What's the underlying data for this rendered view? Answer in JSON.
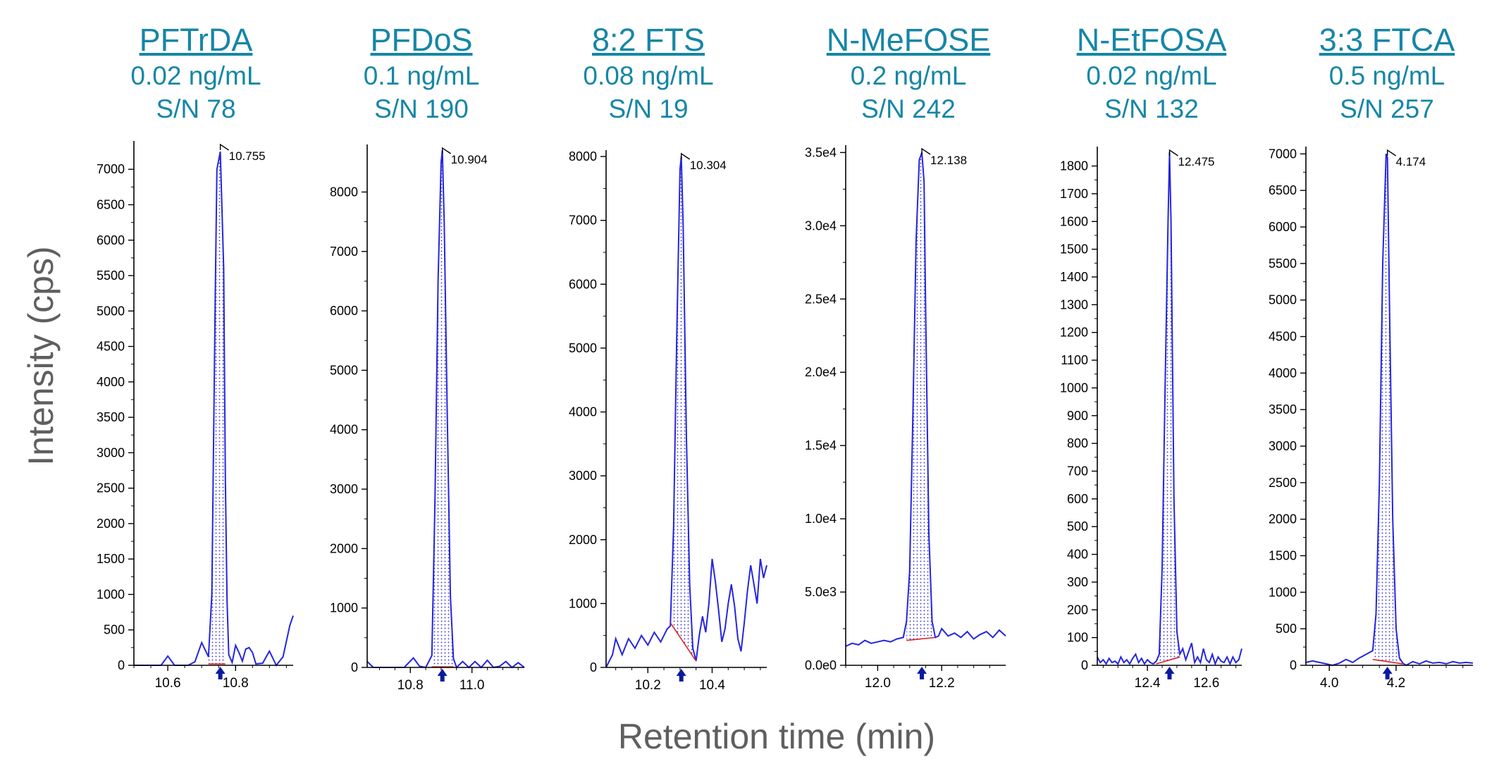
{
  "figure": {
    "ylabel": "Intensity (cps)",
    "xlabel": "Retention time (min)"
  },
  "chart_data": [
    {
      "type": "line",
      "title": "PFTrDA",
      "concentration": "0.02 ng/mL",
      "sn": "S/N 78",
      "peak_label": "10.755",
      "peak_rt": 10.755,
      "xlim": [
        10.5,
        10.97
      ],
      "ylim": [
        0,
        7400
      ],
      "xticks": [
        10.6,
        10.8
      ],
      "xtick_labels": [
        "10.6",
        "10.8"
      ],
      "yticks": [
        0,
        500,
        1000,
        1500,
        2000,
        2500,
        3000,
        3500,
        4000,
        4500,
        5000,
        5500,
        6000,
        6500,
        7000
      ],
      "ytick_labels": [
        "0",
        "500",
        "1000",
        "1500",
        "2000",
        "2500",
        "3000",
        "3500",
        "4000",
        "4500",
        "5000",
        "5500",
        "6000",
        "6500",
        "7000"
      ],
      "baseline": {
        "x": [
          10.72,
          10.77
        ],
        "y": [
          20,
          20
        ]
      },
      "x": [
        10.5,
        10.55,
        10.58,
        10.6,
        10.62,
        10.64,
        10.66,
        10.68,
        10.7,
        10.72,
        10.73,
        10.74,
        10.745,
        10.755,
        10.765,
        10.77,
        10.775,
        10.78,
        10.79,
        10.8,
        10.81,
        10.82,
        10.83,
        10.84,
        10.85,
        10.86,
        10.88,
        10.9,
        10.92,
        10.94,
        10.96,
        10.97
      ],
      "y": [
        0,
        0,
        0,
        130,
        0,
        0,
        0,
        50,
        320,
        120,
        1000,
        5200,
        7000,
        7250,
        5600,
        2600,
        900,
        150,
        40,
        280,
        180,
        60,
        230,
        250,
        180,
        20,
        30,
        200,
        0,
        120,
        560,
        700
      ],
      "integrated": {
        "x_start": 10.72,
        "x_end": 10.77
      }
    },
    {
      "type": "line",
      "title": "PFDoS",
      "concentration": "0.1 ng/mL",
      "sn": "S/N 190",
      "peak_label": "10.904",
      "peak_rt": 10.904,
      "xlim": [
        10.66,
        11.17
      ],
      "ylim": [
        0,
        8800
      ],
      "xticks": [
        10.8,
        11.0
      ],
      "xtick_labels": [
        "10.8",
        "11.0"
      ],
      "yticks": [
        0,
        1000,
        2000,
        3000,
        4000,
        5000,
        6000,
        7000,
        8000
      ],
      "ytick_labels": [
        "0",
        "1000",
        "2000",
        "3000",
        "4000",
        "5000",
        "6000",
        "7000",
        "8000"
      ],
      "baseline": {
        "x": [
          10.87,
          10.94
        ],
        "y": [
          10,
          10
        ]
      },
      "x": [
        10.66,
        10.68,
        10.7,
        10.74,
        10.78,
        10.81,
        10.83,
        10.85,
        10.87,
        10.88,
        10.89,
        10.9,
        10.904,
        10.91,
        10.92,
        10.93,
        10.94,
        10.95,
        10.97,
        10.99,
        11.01,
        11.03,
        11.05,
        11.07,
        11.09,
        11.11,
        11.13,
        11.15,
        11.17
      ],
      "y": [
        100,
        0,
        0,
        0,
        0,
        160,
        20,
        0,
        200,
        2800,
        6500,
        8500,
        8700,
        7500,
        4200,
        1200,
        150,
        0,
        100,
        0,
        100,
        0,
        120,
        0,
        20,
        100,
        0,
        80,
        0
      ],
      "integrated": {
        "x_start": 10.87,
        "x_end": 10.94
      }
    },
    {
      "type": "line",
      "title": "8:2 FTS",
      "concentration": "0.08 ng/mL",
      "sn": "S/N 19",
      "peak_label": "10.304",
      "peak_rt": 10.304,
      "xlim": [
        10.07,
        10.57
      ],
      "ylim": [
        0,
        8100
      ],
      "xticks": [
        10.2,
        10.4
      ],
      "xtick_labels": [
        "10.2",
        "10.4"
      ],
      "yticks": [
        0,
        1000,
        2000,
        3000,
        4000,
        5000,
        6000,
        7000,
        8000
      ],
      "ytick_labels": [
        "0",
        "1000",
        "2000",
        "3000",
        "4000",
        "5000",
        "6000",
        "7000",
        "8000"
      ],
      "baseline": {
        "x": [
          10.27,
          10.35
        ],
        "y": [
          700,
          100
        ]
      },
      "x": [
        10.07,
        10.09,
        10.1,
        10.12,
        10.14,
        10.16,
        10.18,
        10.2,
        10.22,
        10.24,
        10.26,
        10.27,
        10.28,
        10.29,
        10.3,
        10.304,
        10.31,
        10.32,
        10.33,
        10.34,
        10.35,
        10.36,
        10.37,
        10.38,
        10.39,
        10.4,
        10.41,
        10.42,
        10.43,
        10.44,
        10.45,
        10.46,
        10.47,
        10.48,
        10.49,
        10.5,
        10.51,
        10.52,
        10.53,
        10.54,
        10.55,
        10.56,
        10.57
      ],
      "y": [
        0,
        200,
        450,
        200,
        450,
        300,
        500,
        350,
        550,
        400,
        600,
        650,
        2200,
        5200,
        7800,
        8000,
        6900,
        3600,
        1300,
        300,
        100,
        500,
        800,
        550,
        1000,
        1700,
        1350,
        900,
        400,
        600,
        1000,
        1300,
        950,
        450,
        250,
        700,
        1200,
        1600,
        1300,
        1000,
        1700,
        1400,
        1600
      ],
      "integrated": {
        "x_start": 10.27,
        "x_end": 10.35
      }
    },
    {
      "type": "line",
      "title": "N-MeFOSE",
      "concentration": "0.2 ng/mL",
      "sn": "S/N 242",
      "peak_label": "12.138",
      "peak_rt": 12.138,
      "xlim": [
        11.9,
        12.4
      ],
      "ylim": [
        0,
        35500
      ],
      "xticks": [
        12.0,
        12.2
      ],
      "xtick_labels": [
        "12.0",
        "12.2"
      ],
      "yticks": [
        0,
        5000,
        10000,
        15000,
        20000,
        25000,
        30000,
        35000
      ],
      "ytick_labels": [
        "0.0e0",
        "5.0e3",
        "1.0e4",
        "1.5e4",
        "2.0e4",
        "2.5e4",
        "3.0e4",
        "3.5e4"
      ],
      "baseline": {
        "x": [
          12.09,
          12.18
        ],
        "y": [
          1700,
          1900
        ]
      },
      "x": [
        11.9,
        11.92,
        11.94,
        11.96,
        11.98,
        12.0,
        12.02,
        12.04,
        12.06,
        12.08,
        12.09,
        12.1,
        12.11,
        12.12,
        12.13,
        12.138,
        12.145,
        12.15,
        12.16,
        12.17,
        12.18,
        12.19,
        12.2,
        12.22,
        12.24,
        12.26,
        12.28,
        12.3,
        12.32,
        12.34,
        12.36,
        12.38,
        12.4
      ],
      "y": [
        1300,
        1500,
        1400,
        1700,
        1500,
        1600,
        1700,
        1600,
        1800,
        1900,
        3000,
        6500,
        17000,
        29000,
        34500,
        35000,
        33000,
        24000,
        9000,
        3000,
        1900,
        2000,
        2500,
        2000,
        2200,
        1900,
        2300,
        1800,
        2100,
        2300,
        1900,
        2400,
        2000
      ],
      "integrated": {
        "x_start": 12.09,
        "x_end": 12.18
      }
    },
    {
      "type": "line",
      "title": "N-EtFOSA",
      "concentration": "0.02 ng/mL",
      "sn": "S/N 132",
      "peak_label": "12.475",
      "peak_rt": 12.475,
      "xlim": [
        12.23,
        12.72
      ],
      "ylim": [
        0,
        1870
      ],
      "xticks": [
        12.4,
        12.6
      ],
      "xtick_labels": [
        "12.4",
        "12.6"
      ],
      "yticks": [
        0,
        100,
        200,
        300,
        400,
        500,
        600,
        700,
        800,
        900,
        1000,
        1100,
        1200,
        1300,
        1400,
        1500,
        1600,
        1700,
        1800
      ],
      "ytick_labels": [
        "0",
        "100",
        "200",
        "300",
        "400",
        "500",
        "600",
        "700",
        "800",
        "900",
        "1000",
        "1100",
        "1200",
        "1300",
        "1400",
        "1500",
        "1600",
        "1700",
        "1800"
      ],
      "baseline": {
        "x": [
          12.43,
          12.51
        ],
        "y": [
          5,
          30
        ]
      },
      "x": [
        12.23,
        12.24,
        12.25,
        12.26,
        12.27,
        12.28,
        12.29,
        12.3,
        12.31,
        12.32,
        12.33,
        12.34,
        12.35,
        12.36,
        12.37,
        12.38,
        12.39,
        12.4,
        12.41,
        12.42,
        12.43,
        12.44,
        12.45,
        12.46,
        12.47,
        12.475,
        12.48,
        12.49,
        12.5,
        12.51,
        12.52,
        12.53,
        12.54,
        12.55,
        12.56,
        12.57,
        12.58,
        12.59,
        12.6,
        12.61,
        12.62,
        12.63,
        12.64,
        12.65,
        12.66,
        12.67,
        12.68,
        12.69,
        12.7,
        12.71,
        12.72
      ],
      "y": [
        30,
        10,
        20,
        5,
        25,
        10,
        15,
        5,
        30,
        10,
        20,
        5,
        25,
        40,
        10,
        25,
        5,
        20,
        10,
        5,
        15,
        40,
        350,
        1000,
        1600,
        1850,
        1600,
        600,
        120,
        40,
        60,
        20,
        50,
        80,
        10,
        30,
        10,
        60,
        20,
        10,
        40,
        5,
        30,
        15,
        10,
        30,
        5,
        30,
        10,
        20,
        60
      ],
      "integrated": {
        "x_start": 12.43,
        "x_end": 12.51
      }
    },
    {
      "type": "line",
      "title": "3:3 FTCA",
      "concentration": "0.5 ng/mL",
      "sn": "S/N 257",
      "peak_label": "4.174",
      "peak_rt": 4.174,
      "xlim": [
        3.93,
        4.43
      ],
      "ylim": [
        0,
        7100
      ],
      "xticks": [
        4.0,
        4.2
      ],
      "xtick_labels": [
        "4.0",
        "4.2"
      ],
      "yticks": [
        0,
        500,
        1000,
        1500,
        2000,
        2500,
        3000,
        3500,
        4000,
        4500,
        5000,
        5500,
        6000,
        6500,
        7000
      ],
      "ytick_labels": [
        "0",
        "500",
        "1000",
        "1500",
        "2000",
        "2500",
        "3000",
        "3500",
        "4000",
        "4500",
        "5000",
        "5500",
        "6000",
        "6500",
        "7000"
      ],
      "baseline": {
        "x": [
          4.13,
          4.22
        ],
        "y": [
          80,
          20
        ]
      },
      "x": [
        3.93,
        3.95,
        3.97,
        3.99,
        4.01,
        4.03,
        4.05,
        4.07,
        4.09,
        4.11,
        4.13,
        4.14,
        4.15,
        4.16,
        4.17,
        4.174,
        4.18,
        4.19,
        4.2,
        4.21,
        4.22,
        4.23,
        4.25,
        4.27,
        4.29,
        4.31,
        4.33,
        4.35,
        4.37,
        4.39,
        4.41,
        4.43
      ],
      "y": [
        40,
        60,
        40,
        20,
        0,
        30,
        80,
        40,
        100,
        150,
        200,
        700,
        2500,
        5500,
        7000,
        6950,
        5000,
        2000,
        500,
        100,
        30,
        0,
        50,
        20,
        60,
        30,
        40,
        20,
        50,
        30,
        40,
        30
      ],
      "integrated": {
        "x_start": 4.13,
        "x_end": 4.22
      }
    }
  ]
}
